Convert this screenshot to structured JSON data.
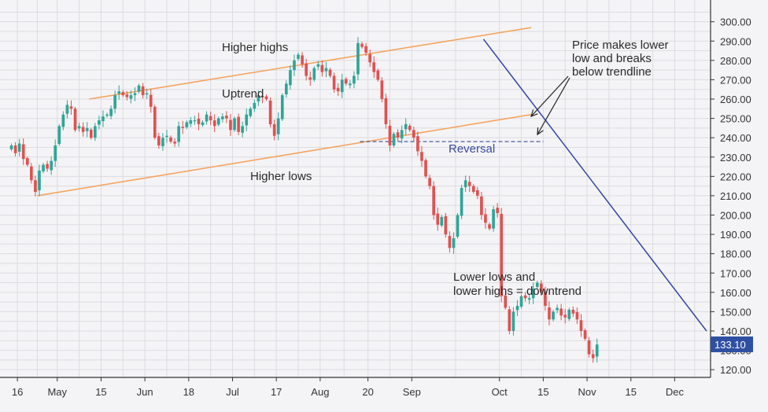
{
  "chart_data": {
    "type": "candlestick",
    "y_axis": {
      "ticks": [
        "300.00",
        "290.00",
        "280.00",
        "270.00",
        "260.00",
        "250.00",
        "240.00",
        "230.00",
        "220.00",
        "210.00",
        "200.00",
        "190.00",
        "180.00",
        "170.00",
        "160.00",
        "150.00",
        "140.00",
        "130.00",
        "120.00"
      ],
      "range": [
        116,
        308
      ],
      "side": "right"
    },
    "x_axis": {
      "ticks": [
        "16",
        "May",
        "15",
        "Jun",
        "18",
        "Jul",
        "17",
        "Aug",
        "20",
        "Sep",
        "Oct",
        "15",
        "Nov",
        "15",
        "Dec"
      ],
      "range": [
        0,
        176
      ],
      "tick_positions": [
        2,
        12,
        23,
        34,
        45,
        56,
        67,
        78,
        90,
        101,
        123,
        134,
        145,
        156,
        167
      ]
    },
    "grid": true,
    "last_price": {
      "label": "133.10",
      "value": 133.1,
      "color": "#2f4fa1"
    },
    "colors": {
      "up": "#2ea597",
      "down": "#e05050",
      "channel": "#f4a460",
      "downtrend": "#3344a0",
      "support": "#3a4a99"
    },
    "annotations": {
      "higher_highs": "Higher highs",
      "uptrend": "Uptrend",
      "higher_lows": "Higher lows",
      "reversal": "Reversal",
      "breakdown": [
        "Price makes lower",
        "low and breaks",
        "below trendline"
      ],
      "downtrend": [
        "Lower lows and",
        "lower highs = downtrend"
      ]
    },
    "trendlines": {
      "channel_upper": [
        [
          20,
          260
        ],
        [
          131,
          297
        ]
      ],
      "channel_lower": [
        [
          7,
          210
        ],
        [
          131,
          252
        ]
      ],
      "support_line": [
        [
          88,
          238
        ],
        [
          134,
          238
        ]
      ],
      "downtrend_line": [
        [
          119,
          291
        ],
        [
          175,
          140
        ]
      ]
    },
    "candles_close": [
      236,
      232,
      237,
      229,
      226,
      218,
      212,
      223,
      226,
      224,
      228,
      236,
      246,
      252,
      257,
      255,
      244,
      246,
      243,
      245,
      240,
      246,
      249,
      251,
      252,
      255,
      262,
      264,
      262,
      261,
      262,
      263,
      267,
      262,
      263,
      256,
      240,
      236,
      240,
      241,
      238,
      237,
      246,
      245,
      248,
      249,
      249,
      247,
      248,
      252,
      249,
      246,
      250,
      251,
      250,
      244,
      250,
      243,
      246,
      252,
      255,
      258,
      262,
      261,
      260,
      247,
      241,
      250,
      262,
      268,
      275,
      280,
      283,
      278,
      272,
      270,
      276,
      278,
      274,
      276,
      272,
      265,
      264,
      270,
      268,
      268,
      272,
      289,
      287,
      284,
      279,
      274,
      270,
      260,
      247,
      236,
      242,
      240,
      244,
      247,
      244,
      240,
      233,
      228,
      220,
      215,
      200,
      195,
      199,
      190,
      183,
      188,
      200,
      214,
      218,
      215,
      212,
      210,
      200,
      196,
      193,
      203,
      201,
      158,
      152,
      140,
      150,
      153,
      158,
      157,
      157,
      162,
      165,
      160,
      153,
      146,
      150,
      152,
      148,
      147,
      151,
      149,
      146,
      140,
      136,
      128,
      126,
      133
    ]
  }
}
